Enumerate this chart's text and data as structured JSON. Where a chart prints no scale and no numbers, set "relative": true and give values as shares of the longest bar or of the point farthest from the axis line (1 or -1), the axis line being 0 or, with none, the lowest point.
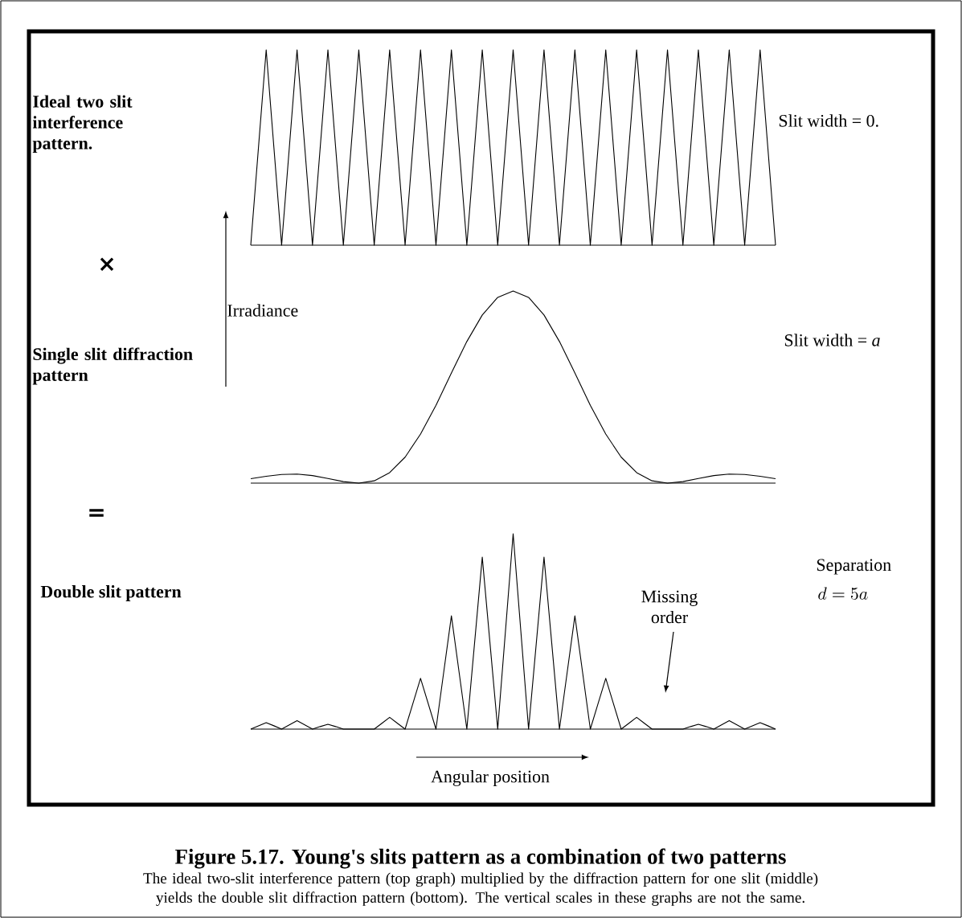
{
  "chart_data": [
    {
      "type": "line",
      "relative": true,
      "categories": [
        null,
        null,
        null,
        null,
        null,
        null,
        null,
        null,
        null,
        null,
        null,
        null,
        null,
        null,
        null,
        null,
        null,
        null,
        null,
        null,
        null,
        null,
        null,
        null,
        null,
        null,
        null,
        null,
        null,
        null,
        null,
        null,
        null,
        null,
        null,
        null,
        null,
        null,
        null,
        null,
        null,
        null,
        null,
        null,
        null,
        null,
        null,
        null,
        null,
        null,
        null,
        null,
        null,
        null,
        null,
        null,
        null,
        null,
        null,
        null,
        null,
        null,
        null,
        null,
        null,
        null,
        null,
        null,
        null
      ],
      "series": [
        {
          "color": "#000000",
          "values": [
            0,
            0.5,
            1,
            0.5,
            0,
            0.5,
            1,
            0.5,
            0,
            0.5,
            1,
            0.5,
            0,
            0.5,
            1,
            0.5,
            0,
            0.5,
            1,
            0.5,
            0,
            0.5,
            1,
            0.5,
            0,
            0.5,
            1,
            0.5,
            0,
            0.5,
            1,
            0.5,
            0,
            0.5,
            1,
            0.5,
            0,
            0.5,
            1,
            0.5,
            0,
            0.5,
            1,
            0.5,
            0,
            0.5,
            1,
            0.5,
            0,
            0.5,
            1,
            0.5,
            0,
            0.5,
            1,
            0.5,
            0,
            0.5,
            1,
            0.5,
            0,
            0.5,
            1,
            0.5,
            0,
            0.5,
            1,
            0.5,
            0
          ]
        }
      ],
      "annotations": [
        "Ideal two slit interference pattern.",
        "Slit width = 0.",
        "×"
      ]
    },
    {
      "type": "line",
      "relative": true,
      "categories": [
        null,
        null,
        null,
        null,
        null,
        null,
        null,
        null,
        null,
        null,
        null,
        null,
        null,
        null,
        null,
        null,
        null,
        null,
        null,
        null,
        null,
        null,
        null,
        null,
        null,
        null,
        null,
        null,
        null,
        null,
        null,
        null,
        null,
        null,
        null
      ],
      "series": [
        {
          "color": "#000000",
          "values": [
            0.0229,
            0.0358,
            0.045,
            0.0468,
            0.0392,
            0.0243,
            0.008,
            0,
            0.0119,
            0.0547,
            0.135,
            0.255,
            0.405,
            0.573,
            0.737,
            0.875,
            0.967,
            1,
            0.967,
            0.875,
            0.737,
            0.573,
            0.405,
            0.255,
            0.135,
            0.0547,
            0.0119,
            0,
            0.008,
            0.0243,
            0.0392,
            0.0468,
            0.045,
            0.0358,
            0.0229
          ]
        }
      ],
      "ylabel": "Irradiance",
      "annotations": [
        "Single slit diffraction pattern",
        "Slit width = *a*",
        "="
      ]
    },
    {
      "type": "line",
      "relative": true,
      "categories": [
        null,
        null,
        null,
        null,
        null,
        null,
        null,
        null,
        null,
        null,
        null,
        null,
        null,
        null,
        null,
        null,
        null,
        null,
        null,
        null,
        null,
        null,
        null,
        null,
        null,
        null,
        null,
        null,
        null,
        null,
        null,
        null,
        null,
        null,
        null,
        null,
        null,
        null,
        null,
        null,
        null,
        null,
        null,
        null,
        null,
        null,
        null,
        null,
        null,
        null,
        null,
        null,
        null,
        null,
        null,
        null,
        null,
        null,
        null,
        null,
        null,
        null,
        null,
        null,
        null,
        null,
        null,
        null,
        null
      ],
      "series": [
        {
          "color": "#000000",
          "values": [
            0,
            0.017,
            0.033,
            0.017,
            0,
            0.022,
            0.043,
            0.022,
            0,
            0.013,
            0.025,
            0.013,
            0,
            0,
            0,
            0,
            0,
            0.03,
            0.06,
            0.03,
            0,
            0.13,
            0.26,
            0.13,
            0,
            0.29,
            0.58,
            0.29,
            0,
            0.44,
            0.88,
            0.44,
            0,
            0.5,
            1,
            0.5,
            0,
            0.44,
            0.88,
            0.44,
            0,
            0.29,
            0.58,
            0.29,
            0,
            0.13,
            0.26,
            0.13,
            0,
            0.03,
            0.06,
            0.03,
            0,
            0,
            0,
            0,
            0,
            0.013,
            0.025,
            0.013,
            0,
            0.022,
            0.043,
            0.022,
            0,
            0.017,
            0.033,
            0.017,
            0
          ]
        }
      ],
      "xlabel": "Angular position",
      "annotations": [
        "Double slit pattern",
        "Separation",
        "d = 5a",
        "Missing order",
        "Figure 5.17.   Young's slits pattern as a combination of two patterns",
        "The ideal two-slit interference pattern (top graph) multiplied by the diffraction pattern for one slit (middle) yields the double slit diffraction pattern (bottom).  The vertical scales in these graphs are not the same."
      ]
    }
  ]
}
